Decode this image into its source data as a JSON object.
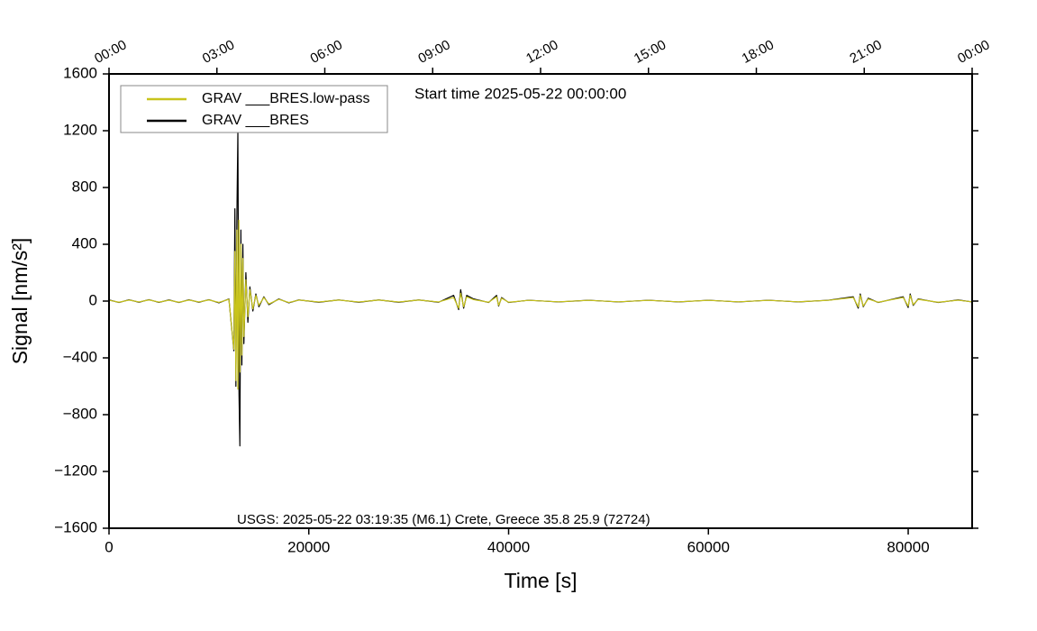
{
  "chart_data": {
    "type": "line",
    "annotations": [
      "Start time 2025-05-22 00:00:00",
      "USGS: 2025-05-22 03:19:35 (M6.1) Crete, Greece 35.8 25.9 (72724)"
    ],
    "x_label": "Time [s]",
    "y_label": "Signal [nm/s²]",
    "xlim": [
      0,
      86400
    ],
    "ylim": [
      -1600,
      1600
    ],
    "xticks": [
      0,
      20000,
      40000,
      60000,
      80000
    ],
    "yticks": [
      {
        "value": -1600,
        "label": "−1600"
      },
      {
        "value": -1200,
        "label": "−1200"
      },
      {
        "value": -800,
        "label": "−800"
      },
      {
        "value": -400,
        "label": "−400"
      },
      0,
      400,
      800,
      1200,
      1600
    ],
    "x2ticks": [
      {
        "value": 0,
        "label": "00:00"
      },
      {
        "value": 10800,
        "label": "03:00"
      },
      {
        "value": 21600,
        "label": "06:00"
      },
      {
        "value": 32400,
        "label": "09:00"
      },
      {
        "value": 43200,
        "label": "12:00"
      },
      {
        "value": 54000,
        "label": "15:00"
      },
      {
        "value": 64800,
        "label": "18:00"
      },
      {
        "value": 75600,
        "label": "21:00"
      },
      {
        "value": 86400,
        "label": "00:00"
      }
    ],
    "legend": "upper left",
    "x": [
      0,
      1000,
      2000,
      3000,
      4000,
      5000,
      6000,
      7000,
      8000,
      9000,
      10000,
      11000,
      12000,
      12500,
      12600,
      12700,
      12800,
      12900,
      13000,
      13100,
      13200,
      13300,
      13400,
      13500,
      13700,
      13900,
      14100,
      14400,
      14700,
      15000,
      15500,
      16000,
      17000,
      18000,
      19000,
      21000,
      23000,
      25000,
      27000,
      29000,
      31000,
      33000,
      34500,
      35000,
      35200,
      35500,
      35800,
      36500,
      38000,
      38800,
      39000,
      39300,
      40000,
      42000,
      45000,
      48000,
      51000,
      54000,
      57000,
      60000,
      63000,
      66000,
      69000,
      72000,
      74500,
      75000,
      75200,
      75500,
      76000,
      77000,
      79500,
      80000,
      80200,
      80500,
      81000,
      83000,
      85000,
      86400
    ],
    "series": [
      {
        "name": "GRAV ___BRES.low-pass",
        "color": "#c8c41c",
        "values": [
          6,
          -8,
          7,
          -6,
          8,
          -7,
          6,
          -8,
          7,
          -6,
          8,
          -9,
          12,
          -340,
          350,
          -560,
          500,
          -620,
          570,
          -500,
          400,
          -380,
          300,
          -250,
          150,
          -110,
          80,
          -55,
          40,
          -30,
          25,
          -20,
          12,
          -10,
          7,
          -6,
          7,
          -6,
          7,
          -6,
          7,
          -6,
          25,
          -50,
          55,
          -40,
          30,
          10,
          -8,
          30,
          -30,
          20,
          -8,
          5,
          -5,
          5,
          -5,
          5,
          -5,
          5,
          -5,
          5,
          -5,
          5,
          25,
          -40,
          40,
          -35,
          15,
          -8,
          25,
          -35,
          40,
          -25,
          12,
          -8,
          6,
          -5
        ]
      },
      {
        "name": "GRAV ___BRES",
        "color": "#000000",
        "values": [
          8,
          -10,
          9,
          -8,
          10,
          -9,
          8,
          -10,
          9,
          -8,
          10,
          -12,
          15,
          -350,
          650,
          -600,
          600,
          1200,
          -600,
          -1020,
          500,
          -450,
          400,
          -300,
          200,
          -150,
          100,
          -70,
          50,
          -40,
          30,
          -25,
          15,
          -12,
          8,
          -8,
          8,
          -8,
          8,
          -8,
          8,
          -8,
          40,
          -60,
          80,
          -50,
          40,
          15,
          -10,
          40,
          -35,
          25,
          -10,
          6,
          -6,
          6,
          -6,
          6,
          -6,
          6,
          -6,
          6,
          -6,
          6,
          30,
          -50,
          50,
          -40,
          20,
          -10,
          30,
          -45,
          50,
          -30,
          15,
          -10,
          8,
          -6
        ]
      }
    ]
  }
}
